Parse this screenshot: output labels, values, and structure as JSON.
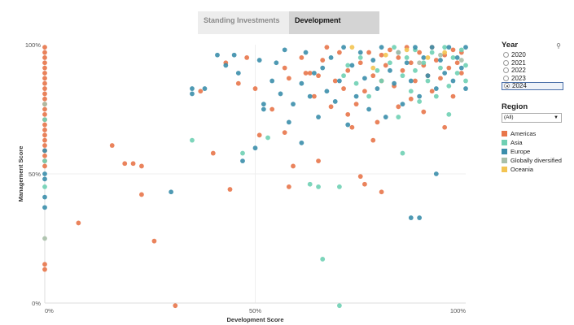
{
  "tabs": [
    {
      "label": "Standing Investments",
      "active": false
    },
    {
      "label": "Development",
      "active": true
    }
  ],
  "filters": {
    "year": {
      "title": "Year",
      "options": [
        "2020",
        "2021",
        "2022",
        "2023",
        "2024"
      ],
      "selected": "2024"
    },
    "region": {
      "title": "Region",
      "selected": "(All)"
    }
  },
  "colors": {
    "Americas": "#e8764a",
    "Asia": "#6fd0b4",
    "Europe": "#3b8eab",
    "Globally diversified": "#a8bfa9",
    "Oceania": "#f3c452"
  },
  "chart_data": {
    "type": "scatter",
    "xlabel": "Development Score",
    "ylabel": "Management Score",
    "xlim": [
      0,
      100
    ],
    "ylim": [
      0,
      100
    ],
    "xticks": [
      "0%",
      "50%",
      "100%"
    ],
    "yticks": [
      "0%",
      "50%",
      "100%"
    ],
    "grid": true,
    "legend_position": "right",
    "series": [
      {
        "name": "Americas",
        "points": [
          [
            0,
            99
          ],
          [
            0,
            97
          ],
          [
            0,
            95
          ],
          [
            0,
            93
          ],
          [
            0,
            91
          ],
          [
            0,
            89
          ],
          [
            0,
            87
          ],
          [
            0,
            85
          ],
          [
            0,
            83
          ],
          [
            0,
            81
          ],
          [
            0,
            79
          ],
          [
            0,
            77
          ],
          [
            0,
            75
          ],
          [
            0,
            73
          ],
          [
            0,
            71
          ],
          [
            0,
            69
          ],
          [
            0,
            67
          ],
          [
            0,
            65
          ],
          [
            0,
            63
          ],
          [
            0,
            61
          ],
          [
            0,
            59
          ],
          [
            0,
            57
          ],
          [
            0,
            55
          ],
          [
            0,
            53
          ],
          [
            0,
            15
          ],
          [
            0,
            13
          ],
          [
            8,
            31
          ],
          [
            16,
            61
          ],
          [
            19,
            54
          ],
          [
            21,
            54
          ],
          [
            23,
            53
          ],
          [
            23,
            42
          ],
          [
            26,
            24
          ],
          [
            31,
            -1
          ],
          [
            37,
            82
          ],
          [
            40,
            58
          ],
          [
            43,
            93
          ],
          [
            44,
            44
          ],
          [
            46,
            85
          ],
          [
            48,
            95
          ],
          [
            50,
            83
          ],
          [
            51,
            65
          ],
          [
            54,
            75
          ],
          [
            57,
            91
          ],
          [
            57,
            66
          ],
          [
            58,
            87
          ],
          [
            58,
            45
          ],
          [
            59,
            53
          ],
          [
            61,
            95
          ],
          [
            62,
            89
          ],
          [
            63,
            89
          ],
          [
            64,
            80
          ],
          [
            65,
            88
          ],
          [
            65,
            55
          ],
          [
            66,
            94
          ],
          [
            67,
            99
          ],
          [
            68,
            76
          ],
          [
            69,
            86
          ],
          [
            70,
            97
          ],
          [
            71,
            83
          ],
          [
            72,
            90
          ],
          [
            72,
            73
          ],
          [
            73,
            68
          ],
          [
            74,
            77
          ],
          [
            75,
            93
          ],
          [
            75,
            49
          ],
          [
            76,
            82
          ],
          [
            76,
            46
          ],
          [
            77,
            97
          ],
          [
            78,
            88
          ],
          [
            78,
            63
          ],
          [
            79,
            70
          ],
          [
            80,
            96
          ],
          [
            80,
            86
          ],
          [
            80,
            43
          ],
          [
            81,
            92
          ],
          [
            82,
            98
          ],
          [
            83,
            84
          ],
          [
            84,
            76
          ],
          [
            84,
            95
          ],
          [
            85,
            90
          ],
          [
            86,
            99
          ],
          [
            87,
            79
          ],
          [
            87,
            93
          ],
          [
            88,
            86
          ],
          [
            89,
            97
          ],
          [
            90,
            74
          ],
          [
            90,
            92
          ],
          [
            91,
            88
          ],
          [
            92,
            99
          ],
          [
            92,
            82
          ],
          [
            93,
            94
          ],
          [
            94,
            87
          ],
          [
            95,
            96
          ],
          [
            95,
            68
          ],
          [
            96,
            91
          ],
          [
            97,
            98
          ],
          [
            97,
            80
          ],
          [
            98,
            93
          ],
          [
            99,
            89
          ],
          [
            99,
            97
          ]
        ]
      },
      {
        "name": "Asia",
        "points": [
          [
            0,
            71
          ],
          [
            0,
            55
          ],
          [
            0,
            45
          ],
          [
            35,
            63
          ],
          [
            47,
            58
          ],
          [
            53,
            64
          ],
          [
            63,
            46
          ],
          [
            65,
            45
          ],
          [
            66,
            17
          ],
          [
            70,
            45
          ],
          [
            70,
            -1
          ],
          [
            71,
            88
          ],
          [
            72,
            92
          ],
          [
            74,
            85
          ],
          [
            75,
            95
          ],
          [
            77,
            80
          ],
          [
            79,
            90
          ],
          [
            80,
            86
          ],
          [
            82,
            93
          ],
          [
            83,
            99
          ],
          [
            84,
            72
          ],
          [
            85,
            88
          ],
          [
            85,
            58
          ],
          [
            86,
            95
          ],
          [
            87,
            82
          ],
          [
            88,
            98
          ],
          [
            88,
            90
          ],
          [
            89,
            78
          ],
          [
            90,
            93
          ],
          [
            91,
            86
          ],
          [
            92,
            97
          ],
          [
            93,
            80
          ],
          [
            94,
            91
          ],
          [
            95,
            99
          ],
          [
            96,
            84
          ],
          [
            96,
            73
          ],
          [
            97,
            95
          ],
          [
            98,
            89
          ],
          [
            99,
            98
          ],
          [
            100,
            92
          ],
          [
            100,
            86
          ]
        ]
      },
      {
        "name": "Europe",
        "points": [
          [
            0,
            59
          ],
          [
            0,
            50
          ],
          [
            0,
            48
          ],
          [
            0,
            41
          ],
          [
            0,
            37
          ],
          [
            30,
            43
          ],
          [
            35,
            83
          ],
          [
            35,
            81
          ],
          [
            38,
            83
          ],
          [
            41,
            96
          ],
          [
            43,
            92
          ],
          [
            45,
            96
          ],
          [
            46,
            89
          ],
          [
            47,
            55
          ],
          [
            50,
            60
          ],
          [
            51,
            94
          ],
          [
            52,
            77
          ],
          [
            52,
            75
          ],
          [
            54,
            86
          ],
          [
            55,
            93
          ],
          [
            56,
            81
          ],
          [
            57,
            98
          ],
          [
            58,
            70
          ],
          [
            59,
            77
          ],
          [
            61,
            85
          ],
          [
            61,
            62
          ],
          [
            62,
            97
          ],
          [
            63,
            80
          ],
          [
            64,
            89
          ],
          [
            65,
            72
          ],
          [
            66,
            91
          ],
          [
            67,
            82
          ],
          [
            68,
            95
          ],
          [
            69,
            78
          ],
          [
            70,
            86
          ],
          [
            71,
            99
          ],
          [
            72,
            69
          ],
          [
            73,
            92
          ],
          [
            74,
            80
          ],
          [
            75,
            97
          ],
          [
            76,
            87
          ],
          [
            77,
            75
          ],
          [
            78,
            94
          ],
          [
            79,
            83
          ],
          [
            80,
            99
          ],
          [
            81,
            72
          ],
          [
            82,
            90
          ],
          [
            83,
            85
          ],
          [
            84,
            97
          ],
          [
            85,
            77
          ],
          [
            86,
            93
          ],
          [
            87,
            86
          ],
          [
            87,
            33
          ],
          [
            88,
            99
          ],
          [
            89,
            80
          ],
          [
            89,
            33
          ],
          [
            90,
            95
          ],
          [
            91,
            88
          ],
          [
            92,
            99
          ],
          [
            93,
            83
          ],
          [
            93,
            50
          ],
          [
            94,
            94
          ],
          [
            95,
            89
          ],
          [
            96,
            99
          ],
          [
            97,
            86
          ],
          [
            98,
            95
          ],
          [
            99,
            91
          ],
          [
            100,
            99
          ],
          [
            100,
            83
          ]
        ]
      },
      {
        "name": "Globally diversified",
        "points": [
          [
            0,
            77
          ],
          [
            0,
            25
          ],
          [
            84,
            97
          ],
          [
            89,
            93
          ],
          [
            94,
            96
          ],
          [
            99,
            94
          ]
        ]
      },
      {
        "name": "Oceania",
        "points": [
          [
            73,
            99
          ],
          [
            78,
            91
          ],
          [
            81,
            96
          ],
          [
            86,
            98
          ],
          [
            91,
            95
          ],
          [
            95,
            97
          ]
        ]
      }
    ]
  }
}
